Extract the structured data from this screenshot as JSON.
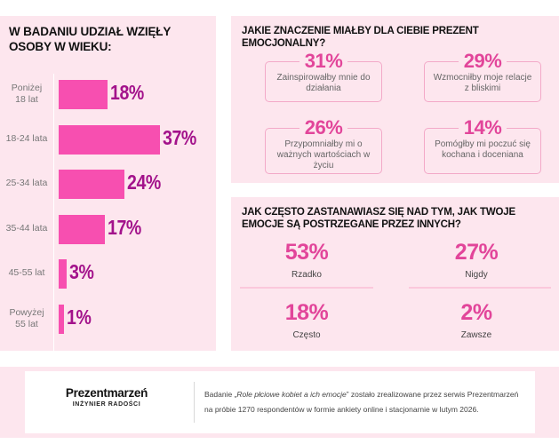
{
  "age_panel": {
    "title": "W BADANIU UDZIAŁ WZIĘŁY OSOBY W WIEKU:"
  },
  "gift_panel": {
    "title": "JAKIE ZNACZENIE MIAŁBY DLA CIEBIE PREZENT EMOCJONALNY?"
  },
  "freq_panel": {
    "title": "JAK CZĘSTO ZASTANAWIASZ SIĘ NAD TYM, JAK TWOJE EMOCJE SĄ POSTRZEGANE PRZEZ INNYCH?"
  },
  "chart_data": [
    {
      "type": "bar",
      "title": "W BADANIU UDZIAŁ WZIĘŁY OSOBY W WIEKU:",
      "categories": [
        "Poniżej 18 lat",
        "18-24 lata",
        "25-34 lata",
        "35-44 lata",
        "45-55 lat",
        "Powyżej 55 lat"
      ],
      "values": [
        18,
        37,
        24,
        17,
        3,
        1
      ],
      "value_labels": [
        "18%",
        "37%",
        "24%",
        "17%",
        "3%",
        "1%"
      ],
      "orientation": "horizontal",
      "xlim": [
        0,
        37
      ],
      "bar_color": "#f74fb0",
      "label_color": "#a3128b"
    },
    {
      "type": "table",
      "title": "JAKIE ZNACZENIE MIAŁBY DLA CIEBIE PREZENT EMOCJONALNY?",
      "categories": [
        "Zainspirowałby mnie do działania",
        "Wzmocniłby moje relacje z bliskimi",
        "Przypomniałby mi o ważnych wartościach w życiu",
        "Pomógłby mi poczuć się kochana i doceniana"
      ],
      "values": [
        31,
        29,
        26,
        14
      ],
      "value_labels": [
        "31%",
        "29%",
        "26%",
        "14%"
      ]
    },
    {
      "type": "table",
      "title": "JAK CZĘSTO ZASTANAWIASZ SIĘ NAD TYM, JAK TWOJE EMOCJE SĄ POSTRZEGANE PRZEZ INNYCH?",
      "categories": [
        "Rzadko",
        "Nigdy",
        "Często",
        "Zawsze"
      ],
      "values": [
        53,
        27,
        18,
        2
      ],
      "value_labels": [
        "53%",
        "27%",
        "18%",
        "2%"
      ]
    }
  ],
  "footer": {
    "brand": "Prezentmarzeń",
    "tagline": "INŻYNIER RADOŚCI",
    "text_line1_pre": "Badanie „",
    "study_title": "Role płciowe kobiet a ich emocje",
    "text_line1_post": "” zostało zrealizowane przez serwis Prezentmarzeń",
    "text_line2": "na próbie 1270 respondentów w formie ankiety online i stacjonarnie w lutym 2026."
  },
  "colors": {
    "panel_bg": "#fde6ee",
    "bar": "#f74fb0",
    "age_pct": "#a3128b",
    "accent_pct": "#e2459a"
  }
}
